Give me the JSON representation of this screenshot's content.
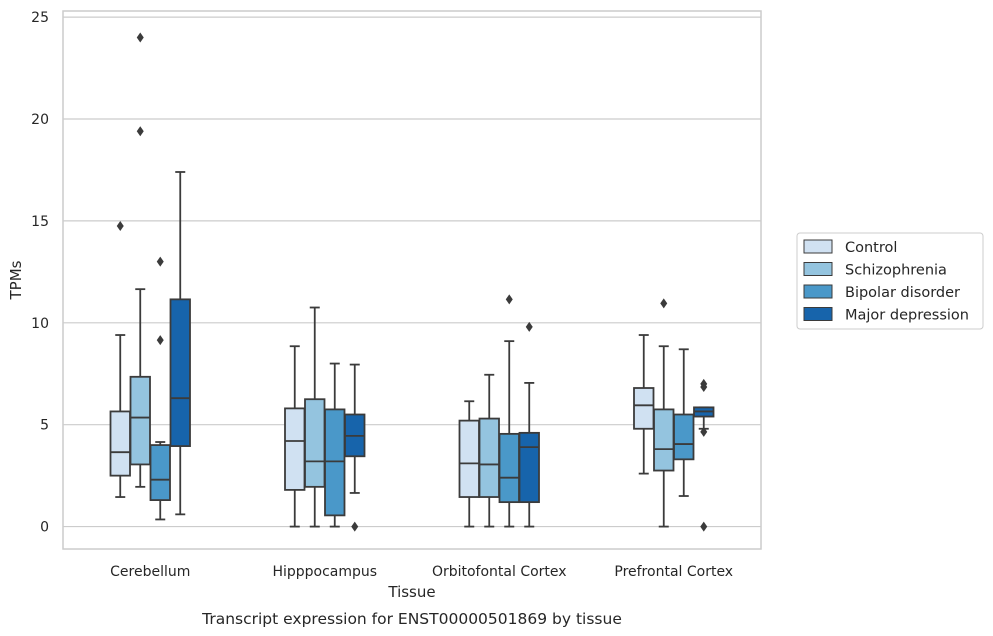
{
  "chart_data": {
    "type": "box",
    "xlabel": "Tissue",
    "ylabel": "TPMs",
    "caption": "Transcript expression for ENST00000501869 by tissue",
    "ylim": [
      -1.1,
      25.3
    ],
    "yticks": [
      0,
      5,
      10,
      15,
      20,
      25
    ],
    "grid": "horizontal",
    "legend_position": "right",
    "categories": [
      "Cerebellum",
      "Hipppocampus",
      "Orbitofontal Cortex",
      "Prefrontal Cortex"
    ],
    "series": [
      {
        "name": "Control",
        "color": "#d0e1f2",
        "boxes": [
          {
            "whislo": 1.45,
            "q1": 2.5,
            "med": 3.65,
            "q3": 5.65,
            "whishi": 9.4,
            "fliers": [
              14.75
            ]
          },
          {
            "whislo": 0.0,
            "q1": 1.8,
            "med": 4.2,
            "q3": 5.8,
            "whishi": 8.85,
            "fliers": []
          },
          {
            "whislo": 0.0,
            "q1": 1.45,
            "med": 3.1,
            "q3": 5.2,
            "whishi": 6.15,
            "fliers": []
          },
          {
            "whislo": 2.6,
            "q1": 4.8,
            "med": 5.95,
            "q3": 6.8,
            "whishi": 9.4,
            "fliers": []
          }
        ]
      },
      {
        "name": "Schizophrenia",
        "color": "#94c4df",
        "boxes": [
          {
            "whislo": 1.95,
            "q1": 3.05,
            "med": 5.35,
            "q3": 7.35,
            "whishi": 11.65,
            "fliers": [
              19.4,
              24.0
            ]
          },
          {
            "whislo": 0.0,
            "q1": 1.95,
            "med": 3.2,
            "q3": 6.25,
            "whishi": 10.75,
            "fliers": []
          },
          {
            "whislo": 0.0,
            "q1": 1.45,
            "med": 3.05,
            "q3": 5.3,
            "whishi": 7.45,
            "fliers": []
          },
          {
            "whislo": 0.0,
            "q1": 2.75,
            "med": 3.8,
            "q3": 5.75,
            "whishi": 8.85,
            "fliers": [
              10.95
            ]
          }
        ]
      },
      {
        "name": "Bipolar disorder",
        "color": "#4a98c9",
        "boxes": [
          {
            "whislo": 0.35,
            "q1": 1.3,
            "med": 2.3,
            "q3": 4.0,
            "whishi": 4.15,
            "fliers": [
              9.15,
              13.0
            ]
          },
          {
            "whislo": 0.0,
            "q1": 0.55,
            "med": 3.2,
            "q3": 5.75,
            "whishi": 8.0,
            "fliers": []
          },
          {
            "whislo": 0.0,
            "q1": 1.2,
            "med": 2.4,
            "q3": 4.55,
            "whishi": 9.1,
            "fliers": [
              11.15
            ]
          },
          {
            "whislo": 1.5,
            "q1": 3.3,
            "med": 4.05,
            "q3": 5.5,
            "whishi": 8.7,
            "fliers": []
          }
        ]
      },
      {
        "name": "Major depression",
        "color": "#1764ab",
        "boxes": [
          {
            "whislo": 0.6,
            "q1": 3.95,
            "med": 6.3,
            "q3": 11.15,
            "whishi": 17.4,
            "fliers": []
          },
          {
            "whislo": 1.65,
            "q1": 3.45,
            "med": 4.45,
            "q3": 5.5,
            "whishi": 7.95,
            "fliers": [
              0.0
            ]
          },
          {
            "whislo": 0.0,
            "q1": 1.2,
            "med": 3.9,
            "q3": 4.6,
            "whishi": 7.05,
            "fliers": [
              9.8
            ]
          },
          {
            "whislo": 4.8,
            "q1": 5.4,
            "med": 5.65,
            "q3": 5.85,
            "whishi": 5.85,
            "fliers": [
              0.0,
              4.65,
              6.85,
              7.0
            ]
          }
        ]
      }
    ]
  }
}
